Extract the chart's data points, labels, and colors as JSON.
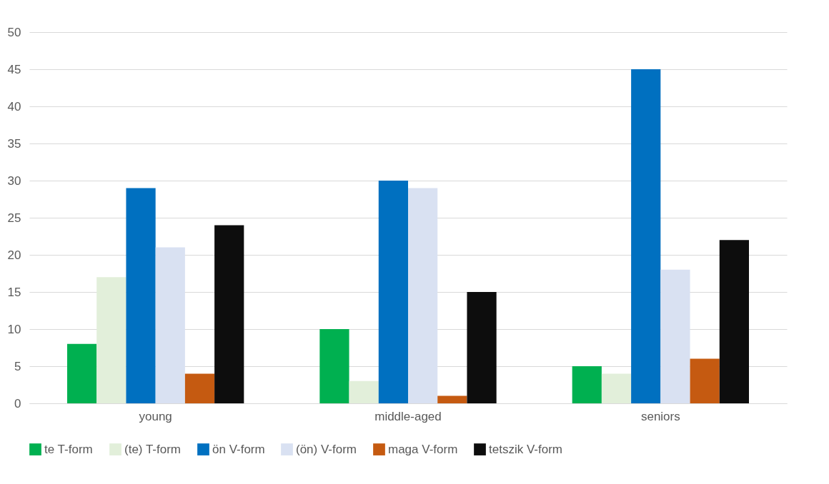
{
  "chart_data": {
    "type": "bar",
    "categories": [
      "young",
      "middle-aged",
      "seniors"
    ],
    "series": [
      {
        "name": "te T-form",
        "color": "#00b050",
        "values": [
          8,
          10,
          5
        ]
      },
      {
        "name": "(te) T-form",
        "color": "#e2efda",
        "values": [
          17,
          3,
          4
        ]
      },
      {
        "name": "ön V-form",
        "color": "#0070c0",
        "values": [
          29,
          30,
          45
        ]
      },
      {
        "name": "(ön) V-form",
        "color": "#d9e1f2",
        "values": [
          21,
          29,
          18
        ]
      },
      {
        "name": "maga V-form",
        "color": "#c55a11",
        "values": [
          4,
          1,
          6
        ]
      },
      {
        "name": "tetszik V-form",
        "color": "#0d0d0d",
        "values": [
          24,
          15,
          22
        ]
      }
    ],
    "ylim": [
      0,
      50
    ],
    "yticks": [
      0,
      5,
      10,
      15,
      20,
      25,
      30,
      35,
      40,
      45,
      50
    ],
    "grid": "y",
    "legend": "bottom"
  }
}
